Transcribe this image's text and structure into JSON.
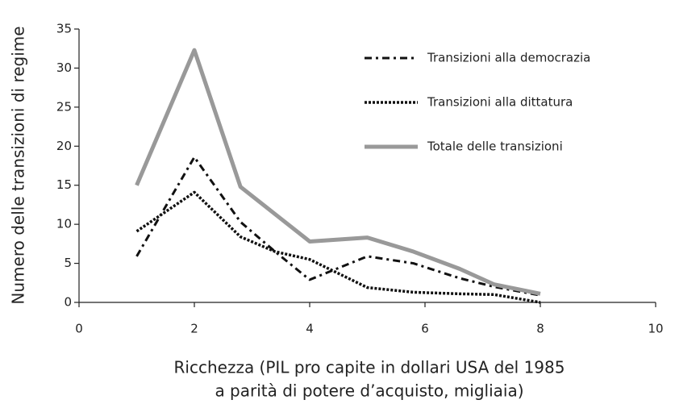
{
  "chart_data": {
    "type": "line",
    "xlabel": [
      "Ricchezza (PIL pro capite in dollari USA del 1985",
      "a parità di potere d’acquisto, migliaia)"
    ],
    "ylabel": "Numero delle transizioni di regime",
    "x": [
      1,
      2,
      2.8,
      3.4,
      4,
      5,
      5.8,
      6.6,
      7.2,
      8
    ],
    "series": [
      {
        "name": "Transizioni alla democrazia",
        "color": "#111111",
        "dash": "dashdot",
        "width": 3,
        "values": [
          5.9,
          18.6,
          10.3,
          6.5,
          2.9,
          5.9,
          5,
          3.1,
          2,
          0.9
        ]
      },
      {
        "name": "Transizioni alla dittatura",
        "color": "#111111",
        "dash": "dotted",
        "width": 3.5,
        "values": [
          9.1,
          14.1,
          8.4,
          6.5,
          5.5,
          1.9,
          1.3,
          1.1,
          1,
          0
        ]
      },
      {
        "name": "Totale delle transizioni",
        "color": "#999999",
        "dash": "solid",
        "width": 5,
        "values": [
          15,
          32.3,
          14.8,
          11.3,
          7.8,
          8.3,
          6.5,
          4.3,
          2.3,
          1.1
        ]
      }
    ],
    "xlim": [
      0,
      10
    ],
    "xticks": [
      0,
      2,
      4,
      6,
      8,
      10
    ],
    "ylim": [
      0,
      35
    ],
    "yticks": [
      0,
      5,
      10,
      15,
      20,
      25,
      30,
      35
    ],
    "legend": "upper right"
  }
}
